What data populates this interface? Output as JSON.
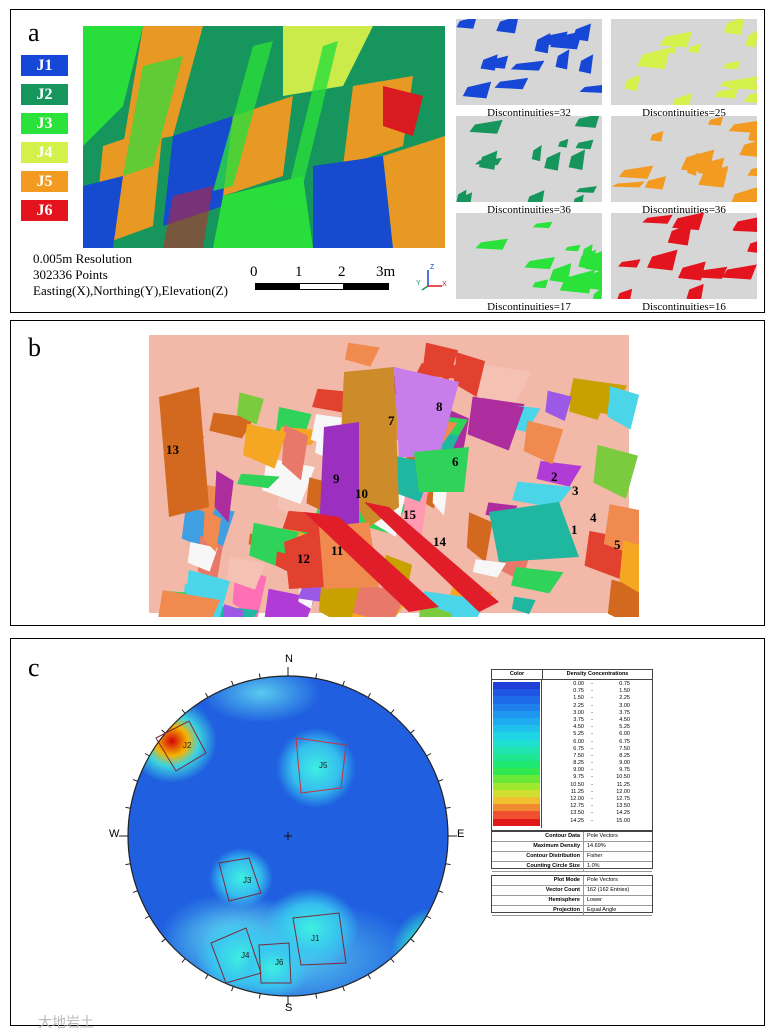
{
  "panel_a": {
    "label": "a",
    "legend": [
      {
        "name": "J1",
        "color": "#1747d6"
      },
      {
        "name": "J2",
        "color": "#16955c"
      },
      {
        "name": "J3",
        "color": "#2be23a"
      },
      {
        "name": "J4",
        "color": "#d4f04a"
      },
      {
        "name": "J5",
        "color": "#f39a21"
      },
      {
        "name": "J6",
        "color": "#e4141e"
      }
    ],
    "info": [
      "0.005m Resolution",
      "302336 Points",
      "Easting(X),Northing(Y),Elevation(Z)"
    ],
    "scale_labels": [
      "0",
      "1",
      "2",
      "3m"
    ],
    "axis_labels": {
      "y": "Y",
      "z": "Z",
      "x": "X"
    },
    "thumbnails": [
      {
        "caption": "Discontinuities=32",
        "color": "#1747d6"
      },
      {
        "caption": "Discontinuities=25",
        "color": "#d4f04a"
      },
      {
        "caption": "Discontinuities=36",
        "color": "#16955c"
      },
      {
        "caption": "Discontinuities=36",
        "color": "#f39a21"
      },
      {
        "caption": "Discontinuities=17",
        "color": "#2be23a"
      },
      {
        "caption": "Discontinuities=16",
        "color": "#e4141e"
      }
    ]
  },
  "panel_b": {
    "label": "b",
    "segment_numbers": [
      "1",
      "2",
      "3",
      "4",
      "5",
      "6",
      "7",
      "8",
      "9",
      "10",
      "11",
      "12",
      "13",
      "14",
      "15"
    ]
  },
  "panel_c": {
    "label": "c",
    "directions": {
      "n": "N",
      "s": "S",
      "e": "E",
      "w": "W"
    },
    "sets": [
      "J1",
      "J2",
      "J3",
      "J4",
      "J5",
      "J6"
    ],
    "density_table": {
      "col_color": "Color",
      "col_density": "Density Concentrations",
      "ranges": [
        {
          "low": "0.00",
          "high": "0.75"
        },
        {
          "low": "0.75",
          "high": "1.50"
        },
        {
          "low": "1.50",
          "high": "2.25"
        },
        {
          "low": "2.25",
          "high": "3.00"
        },
        {
          "low": "3.00",
          "high": "3.75"
        },
        {
          "low": "3.75",
          "high": "4.50"
        },
        {
          "low": "4.50",
          "high": "5.25"
        },
        {
          "low": "5.25",
          "high": "6.00"
        },
        {
          "low": "6.00",
          "high": "6.75"
        },
        {
          "low": "6.75",
          "high": "7.50"
        },
        {
          "low": "7.50",
          "high": "8.25"
        },
        {
          "low": "8.25",
          "high": "9.00"
        },
        {
          "low": "9.00",
          "high": "9.75"
        },
        {
          "low": "9.75",
          "high": "10.50"
        },
        {
          "low": "10.50",
          "high": "11.25"
        },
        {
          "low": "11.25",
          "high": "12.00"
        },
        {
          "low": "12.00",
          "high": "12.75"
        },
        {
          "low": "12.75",
          "high": "13.50"
        },
        {
          "low": "13.50",
          "high": "14.25"
        },
        {
          "low": "14.25",
          "high": "15.00"
        }
      ],
      "stats1": [
        {
          "k": "Contour Data",
          "v": "Pole Vectors"
        },
        {
          "k": "Maximum Density",
          "v": "14.69%"
        },
        {
          "k": "Contour Distribution",
          "v": "Fisher"
        },
        {
          "k": "Counting Circle Size",
          "v": "1.0%"
        }
      ],
      "stats2": [
        {
          "k": "Plot Mode",
          "v": "Pole Vectors"
        },
        {
          "k": "Vector Count",
          "v": "162 (162 Entries)"
        },
        {
          "k": "Hemisphere",
          "v": "Lower"
        },
        {
          "k": "Projection",
          "v": "Equal Angle"
        }
      ]
    }
  },
  "watermark": "大地岩土"
}
